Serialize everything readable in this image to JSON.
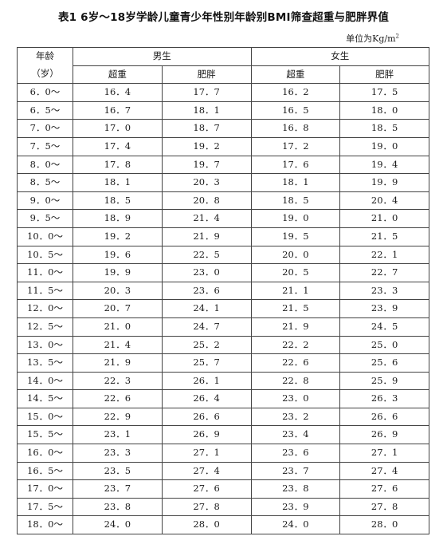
{
  "title": "表1 6岁～18岁学龄儿童青少年性别年龄别BMI筛查超重与肥胖界值",
  "unit": {
    "text": "单位为Kg/m",
    "sup": "2"
  },
  "table": {
    "age_header_line1": "年龄",
    "age_header_line2": "（岁）",
    "group_male": "男生",
    "group_female": "女生",
    "col_overweight": "超重",
    "col_obese": "肥胖",
    "rows": [
      {
        "age": "6．0～",
        "m_ow": "16．4",
        "m_ob": "17．7",
        "f_ow": "16．2",
        "f_ob": "17．5"
      },
      {
        "age": "6．5～",
        "m_ow": "16．7",
        "m_ob": "18．1",
        "f_ow": "16．5",
        "f_ob": "18．0"
      },
      {
        "age": "7．0～",
        "m_ow": "17．0",
        "m_ob": "18．7",
        "f_ow": "16．8",
        "f_ob": "18．5"
      },
      {
        "age": "7．5～",
        "m_ow": "17．4",
        "m_ob": "19．2",
        "f_ow": "17．2",
        "f_ob": "19．0"
      },
      {
        "age": "8．0～",
        "m_ow": "17．8",
        "m_ob": "19．7",
        "f_ow": "17．6",
        "f_ob": "19．4"
      },
      {
        "age": "8．5～",
        "m_ow": "18．1",
        "m_ob": "20．3",
        "f_ow": "18．1",
        "f_ob": "19．9"
      },
      {
        "age": "9．0～",
        "m_ow": "18．5",
        "m_ob": "20．8",
        "f_ow": "18．5",
        "f_ob": "20．4"
      },
      {
        "age": "9．5～",
        "m_ow": "18．9",
        "m_ob": "21．4",
        "f_ow": "19．0",
        "f_ob": "21．0"
      },
      {
        "age": "10．0～",
        "m_ow": "19．2",
        "m_ob": "21．9",
        "f_ow": "19．5",
        "f_ob": "21．5"
      },
      {
        "age": "10．5～",
        "m_ow": "19．6",
        "m_ob": "22．5",
        "f_ow": "20．0",
        "f_ob": "22．1"
      },
      {
        "age": "11．0～",
        "m_ow": "19．9",
        "m_ob": "23．0",
        "f_ow": "20．5",
        "f_ob": "22．7"
      },
      {
        "age": "11．5～",
        "m_ow": "20．3",
        "m_ob": "23．6",
        "f_ow": "21．1",
        "f_ob": "23．3"
      },
      {
        "age": "12．0～",
        "m_ow": "20．7",
        "m_ob": "24．1",
        "f_ow": "21．5",
        "f_ob": "23．9"
      },
      {
        "age": "12．5～",
        "m_ow": "21．0",
        "m_ob": "24．7",
        "f_ow": "21．9",
        "f_ob": "24．5"
      },
      {
        "age": "13．0～",
        "m_ow": "21．4",
        "m_ob": "25．2",
        "f_ow": "22．2",
        "f_ob": "25．0"
      },
      {
        "age": "13．5～",
        "m_ow": "21．9",
        "m_ob": "25．7",
        "f_ow": "22．6",
        "f_ob": "25．6"
      },
      {
        "age": "14．0～",
        "m_ow": "22．3",
        "m_ob": "26．1",
        "f_ow": "22．8",
        "f_ob": "25．9"
      },
      {
        "age": "14．5～",
        "m_ow": "22．6",
        "m_ob": "26．4",
        "f_ow": "23．0",
        "f_ob": "26．3"
      },
      {
        "age": "15．0～",
        "m_ow": "22．9",
        "m_ob": "26．6",
        "f_ow": "23．2",
        "f_ob": "26．6"
      },
      {
        "age": "15．5～",
        "m_ow": "23．1",
        "m_ob": "26．9",
        "f_ow": "23．4",
        "f_ob": "26．9"
      },
      {
        "age": "16．0～",
        "m_ow": "23．3",
        "m_ob": "27．1",
        "f_ow": "23．6",
        "f_ob": "27．1"
      },
      {
        "age": "16．5～",
        "m_ow": "23．5",
        "m_ob": "27．4",
        "f_ow": "23．7",
        "f_ob": "27．4"
      },
      {
        "age": "17．0～",
        "m_ow": "23．7",
        "m_ob": "27．6",
        "f_ow": "23．8",
        "f_ob": "27．6"
      },
      {
        "age": "17．5～",
        "m_ow": "23．8",
        "m_ob": "27．8",
        "f_ow": "23．9",
        "f_ob": "27．8"
      },
      {
        "age": "18．0～",
        "m_ow": "24．0",
        "m_ob": "28．0",
        "f_ow": "24．0",
        "f_ob": "28．0"
      }
    ]
  }
}
